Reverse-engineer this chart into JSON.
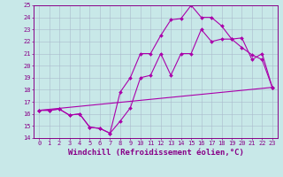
{
  "xlabel": "Windchill (Refroidissement éolien,°C)",
  "xlim": [
    -0.5,
    23.5
  ],
  "ylim": [
    14,
    25
  ],
  "yticks": [
    14,
    15,
    16,
    17,
    18,
    19,
    20,
    21,
    22,
    23,
    24,
    25
  ],
  "xticks": [
    0,
    1,
    2,
    3,
    4,
    5,
    6,
    7,
    8,
    9,
    10,
    11,
    12,
    13,
    14,
    15,
    16,
    17,
    18,
    19,
    20,
    21,
    22,
    23
  ],
  "background_color": "#c8e8e8",
  "grid_color": "#aabbcc",
  "line_color": "#aa00aa",
  "line1_x": [
    0,
    1,
    2,
    3,
    4,
    5,
    6,
    7,
    8,
    9,
    10,
    11,
    12,
    13,
    14,
    15,
    16,
    17,
    18,
    19,
    20,
    21,
    22,
    23
  ],
  "line1_y": [
    16.3,
    16.3,
    16.4,
    15.9,
    16.0,
    14.9,
    14.8,
    14.4,
    15.4,
    16.5,
    19.0,
    19.2,
    21.0,
    19.2,
    21.0,
    21.0,
    23.0,
    22.0,
    22.2,
    22.2,
    22.3,
    20.5,
    21.0,
    18.2
  ],
  "line2_x": [
    0,
    1,
    2,
    3,
    4,
    5,
    6,
    7,
    8,
    9,
    10,
    11,
    12,
    13,
    14,
    15,
    16,
    17,
    18,
    19,
    20,
    21,
    22,
    23
  ],
  "line2_y": [
    16.3,
    16.3,
    16.4,
    15.9,
    16.0,
    14.9,
    14.8,
    14.4,
    17.8,
    19.0,
    21.0,
    21.0,
    22.5,
    23.8,
    23.9,
    25.0,
    24.0,
    24.0,
    23.3,
    22.2,
    21.5,
    20.9,
    20.5,
    18.2
  ],
  "line3_x": [
    0,
    23
  ],
  "line3_y": [
    16.3,
    18.2
  ],
  "marker_size": 2,
  "line_width": 0.8,
  "tick_fontsize": 5,
  "xlabel_fontsize": 6.5
}
